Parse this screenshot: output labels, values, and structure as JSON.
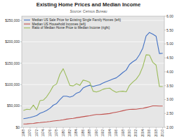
{
  "chart_data": {
    "type": "line",
    "title": "Existing Home Prices and Median Income",
    "subtitle": "Source: Census Bureau",
    "x": [
      1968,
      1969,
      1970,
      1971,
      1972,
      1973,
      1974,
      1975,
      1976,
      1977,
      1978,
      1979,
      1980,
      1981,
      1982,
      1983,
      1984,
      1985,
      1986,
      1987,
      1988,
      1989,
      1990,
      1991,
      1992,
      1993,
      1994,
      1995,
      1996,
      1997,
      1998,
      1999,
      2000,
      2001,
      2002,
      2003,
      2004,
      2005,
      2006,
      2007,
      2008,
      2009,
      2010
    ],
    "xlim": [
      1967.5,
      2010.5
    ],
    "xticks": [
      1968,
      1970,
      1972,
      1974,
      1976,
      1978,
      1980,
      1982,
      1984,
      1986,
      1988,
      1990,
      1992,
      1994,
      1996,
      1998,
      2000,
      2002,
      2004,
      2006,
      2008,
      2010
    ],
    "ylim": [
      0,
      260000
    ],
    "yticks": [
      {
        "value": 0,
        "label": "$0"
      },
      {
        "value": 50000,
        "label": "$50,000"
      },
      {
        "value": 100000,
        "label": "$100,000"
      },
      {
        "value": 150000,
        "label": "$150,000"
      },
      {
        "value": 200000,
        "label": "$200,000"
      },
      {
        "value": 250000,
        "label": "$250,000"
      }
    ],
    "y2lim": [
      2.0,
      6.0
    ],
    "y2ticks": [
      {
        "value": 2.0,
        "label": "2.00"
      },
      {
        "value": 2.5,
        "label": "2.50"
      },
      {
        "value": 3.0,
        "label": "3.00"
      },
      {
        "value": 3.5,
        "label": "3.50"
      },
      {
        "value": 4.0,
        "label": "4.00"
      },
      {
        "value": 4.5,
        "label": "4.50"
      },
      {
        "value": 5.0,
        "label": "5.00"
      },
      {
        "value": 5.5,
        "label": "5.50"
      },
      {
        "value": 6.0,
        "label": "6.00"
      }
    ],
    "series": [
      {
        "name": "Median US Sale Price for Existing Single Family Homes (left)",
        "color": "#4472C4",
        "values": [
          20100,
          21500,
          23000,
          25200,
          27600,
          32900,
          35800,
          39400,
          44600,
          51800,
          55700,
          64700,
          72750,
          72900,
          70900,
          73400,
          79900,
          82800,
          92000,
          95700,
          98500,
          95500,
          97800,
          99700,
          103700,
          106800,
          109900,
          113100,
          115800,
          121800,
          128400,
          133900,
          147300,
          153500,
          158300,
          170000,
          185200,
          213600,
          221900,
          217900,
          213200,
          172600,
          173100
        ]
      },
      {
        "name": "Median US Household Incomes (left)",
        "color": "#C0504D",
        "values": [
          7700,
          8100,
          8700,
          9000,
          10500,
          11100,
          12000,
          12690,
          13600,
          14830,
          15660,
          16530,
          17700,
          19074,
          20200,
          21020,
          22400,
          23620,
          24900,
          26080,
          27220,
          28910,
          29940,
          30130,
          30730,
          31430,
          32260,
          34076,
          35480,
          37005,
          38885,
          40816,
          41990,
          42228,
          42400,
          43564,
          44330,
          46326,
          48200,
          50233,
          50300,
          49777,
          49800
        ]
      },
      {
        "name": "Ratio of Median Home Price to Median Income (right)",
        "color": "#9BBB59",
        "axis": "y2",
        "values": [
          2.61,
          2.65,
          2.64,
          2.8,
          2.63,
          2.96,
          2.98,
          3.1,
          3.28,
          3.49,
          3.56,
          3.91,
          4.11,
          3.82,
          3.51,
          3.49,
          3.57,
          3.51,
          3.7,
          3.67,
          3.62,
          3.3,
          3.27,
          3.31,
          3.37,
          3.4,
          3.41,
          3.32,
          3.26,
          3.29,
          3.3,
          3.28,
          3.51,
          3.63,
          3.73,
          3.9,
          4.18,
          4.61,
          4.6,
          4.34,
          4.24,
          3.47,
          3.47
        ]
      }
    ],
    "grid": true,
    "legend": "upper left"
  }
}
